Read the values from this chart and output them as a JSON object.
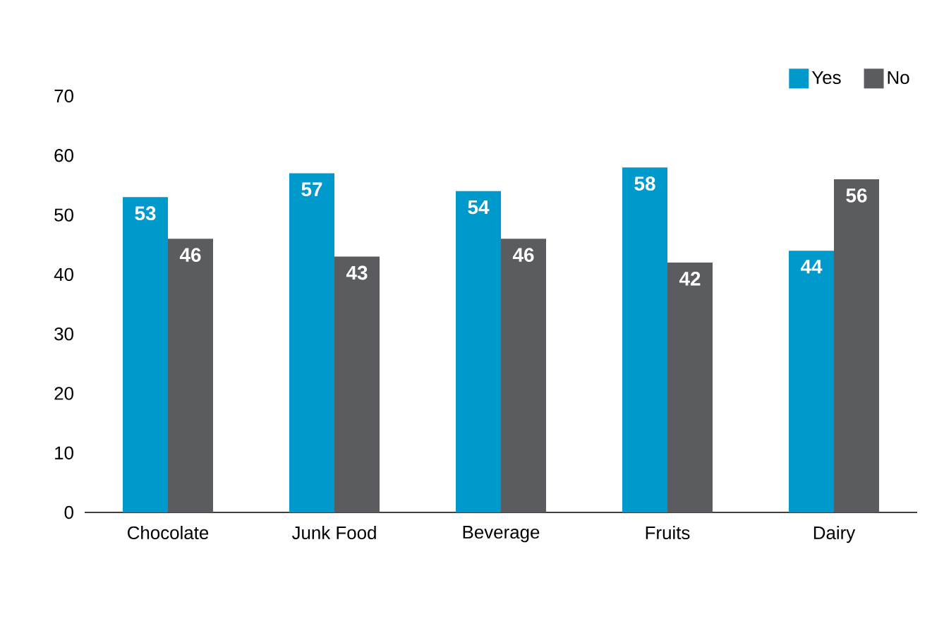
{
  "chart_data": {
    "type": "bar",
    "categories": [
      "Chocolate",
      "Junk Food",
      "Beverage",
      "Fruits",
      "Dairy"
    ],
    "series": [
      {
        "name": "Yes",
        "color": "#0099cc",
        "values": [
          53,
          57,
          54,
          58,
          44
        ]
      },
      {
        "name": "No",
        "color": "#5b5c60",
        "values": [
          46,
          43,
          46,
          42,
          56
        ]
      }
    ],
    "ylim": [
      0,
      70
    ],
    "yticks": [
      0,
      10,
      20,
      30,
      40,
      50,
      60,
      70
    ],
    "data_labels": true,
    "legend": "top right"
  }
}
